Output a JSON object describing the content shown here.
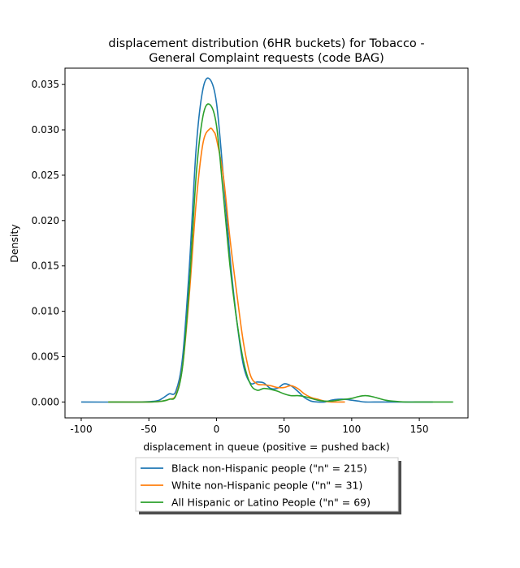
{
  "chart_data": {
    "type": "line",
    "title_lines": [
      "displacement distribution (6HR buckets) for Tobacco -",
      "General Complaint requests (code BAG)"
    ],
    "xlabel": "displacement in queue (positive = pushed back)",
    "ylabel": "Density",
    "xlim": [
      -112,
      186
    ],
    "ylim": [
      -0.00175,
      0.0368
    ],
    "x_ticks": [
      -100,
      -50,
      0,
      50,
      100,
      150
    ],
    "y_ticks": [
      0.0,
      0.005,
      0.01,
      0.015,
      0.02,
      0.025,
      0.03,
      0.035
    ],
    "y_tick_labels": [
      "0.000",
      "0.005",
      "0.010",
      "0.015",
      "0.020",
      "0.025",
      "0.030",
      "0.035"
    ],
    "grid": false,
    "legend_position": "below",
    "series": [
      {
        "name": "Black non-Hispanic people (\"n\" = 215)",
        "color": "#1f77b4",
        "x": [
          -100,
          -60,
          -45,
          -40,
          -35,
          -30,
          -25,
          -20,
          -15,
          -10,
          -5,
          0,
          5,
          10,
          15,
          20,
          25,
          30,
          35,
          40,
          45,
          50,
          55,
          60,
          65,
          70,
          75,
          80,
          85,
          90,
          95,
          100,
          105,
          110,
          120,
          130,
          140,
          160
        ],
        "y": [
          0.0,
          0.0,
          0.0001,
          0.0004,
          0.0009,
          0.0012,
          0.005,
          0.015,
          0.028,
          0.0345,
          0.0356,
          0.033,
          0.025,
          0.016,
          0.009,
          0.004,
          0.0021,
          0.0022,
          0.0021,
          0.0015,
          0.0015,
          0.002,
          0.0018,
          0.0012,
          0.0005,
          0.0001,
          0.0,
          0.0,
          0.0002,
          0.0003,
          0.0003,
          0.0002,
          0.0001,
          0.0,
          0.0,
          0.0,
          0.0,
          0.0
        ]
      },
      {
        "name": "White non-Hispanic people (\"n\" = 31)",
        "color": "#ff7f0e",
        "x": [
          -80,
          -50,
          -40,
          -35,
          -30,
          -25,
          -20,
          -15,
          -10,
          -5,
          -2,
          0,
          5,
          10,
          15,
          20,
          25,
          30,
          35,
          40,
          45,
          50,
          55,
          60,
          65,
          70,
          75,
          80,
          85,
          90,
          95
        ],
        "y": [
          0.0,
          0.0,
          0.0001,
          0.0003,
          0.0008,
          0.004,
          0.012,
          0.022,
          0.0285,
          0.0301,
          0.0298,
          0.029,
          0.025,
          0.018,
          0.012,
          0.0065,
          0.003,
          0.002,
          0.0019,
          0.0018,
          0.0016,
          0.0016,
          0.0018,
          0.0015,
          0.0009,
          0.0005,
          0.0003,
          0.0001,
          0.0,
          0.0,
          0.0
        ]
      },
      {
        "name": "All Hispanic or Latino People (\"n\" = 69)",
        "color": "#2ca02c",
        "x": [
          -80,
          -50,
          -40,
          -35,
          -30,
          -25,
          -20,
          -15,
          -10,
          -5,
          0,
          5,
          10,
          15,
          20,
          25,
          30,
          35,
          40,
          45,
          50,
          55,
          60,
          65,
          70,
          75,
          80,
          85,
          90,
          95,
          100,
          105,
          110,
          115,
          120,
          125,
          130,
          140,
          150,
          160,
          175
        ],
        "y": [
          0.0,
          0.0,
          0.0001,
          0.0003,
          0.0007,
          0.004,
          0.013,
          0.025,
          0.0315,
          0.0328,
          0.0305,
          0.023,
          0.015,
          0.009,
          0.0045,
          0.002,
          0.0013,
          0.0015,
          0.0014,
          0.0012,
          0.0009,
          0.0007,
          0.0007,
          0.0006,
          0.0004,
          0.0002,
          0.0001,
          0.0001,
          0.0002,
          0.0003,
          0.0004,
          0.0006,
          0.0007,
          0.0006,
          0.0004,
          0.0002,
          0.0001,
          0.0,
          0.0,
          0.0,
          0.0
        ]
      }
    ]
  }
}
